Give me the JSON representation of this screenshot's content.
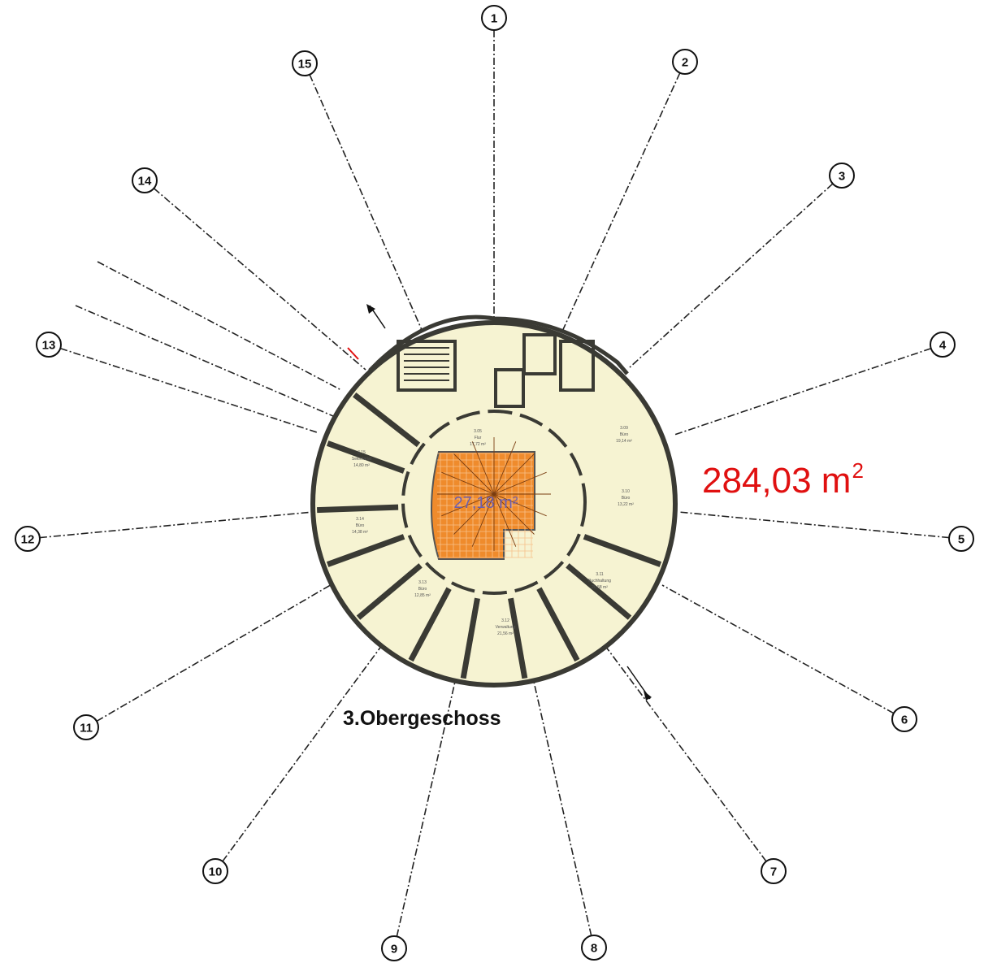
{
  "plan": {
    "floor_title": "3.Obergeschoss",
    "total_area_value": "284,03 m",
    "total_area_exp": "2",
    "core_area": "27,18 m²",
    "colors": {
      "floor_fill": "#f6f3d2",
      "wall": "#3a3a34",
      "core_fill": "#ef8b2c",
      "area_text": "#e01010",
      "core_text": "#6b5fb0"
    }
  },
  "axes": [
    "1",
    "2",
    "3",
    "4",
    "5",
    "6",
    "7",
    "8",
    "9",
    "10",
    "11",
    "12",
    "13",
    "14",
    "15"
  ],
  "rooms": [
    {
      "number": "3.09",
      "name": "Büro",
      "area": "19,14 m²"
    },
    {
      "number": "3.10",
      "name": "Büro",
      "area": "13,22 m²"
    },
    {
      "number": "3.11",
      "name": "Buchhaltung",
      "area": "26,58 m²"
    },
    {
      "number": "3.12",
      "name": "Verwaltung",
      "area": "21,56 m²"
    },
    {
      "number": "3.13",
      "name": "Büro",
      "area": "12,85 m²"
    },
    {
      "number": "3.14",
      "name": "Büro",
      "area": "14,38 m²"
    },
    {
      "number": "3.15",
      "name": "Sekretariat",
      "area": "14,80 m²"
    },
    {
      "number": "3.05",
      "name": "Flur",
      "area": "17,72 m²"
    }
  ]
}
